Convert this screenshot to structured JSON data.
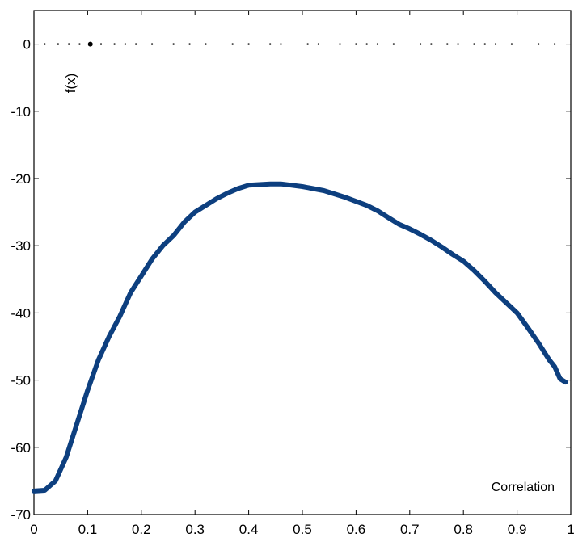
{
  "chart_data": {
    "type": "line",
    "title": "",
    "xlabel": "Correlation",
    "ylabel": "f(x)",
    "xlim": [
      0,
      1
    ],
    "ylim": [
      -70,
      5
    ],
    "x_ticks": [
      0,
      0.1,
      0.2,
      0.3,
      0.4,
      0.5,
      0.6,
      0.7,
      0.8,
      0.9,
      1
    ],
    "x_tick_labels": [
      "0",
      "0.1",
      "0.2",
      "0.3",
      "0.4",
      "0.5",
      "0.6",
      "0.7",
      "0.8",
      "0.9",
      "1"
    ],
    "y_ticks": [
      0,
      -10,
      -20,
      -30,
      -40,
      -50,
      -60,
      -70
    ],
    "y_tick_labels": [
      "0",
      "-10",
      "-20",
      "-30",
      "-40",
      "-50",
      "-60",
      "-70"
    ],
    "grid": false,
    "series": [
      {
        "color": "#0d3f7f",
        "x": [
          0,
          0.02,
          0.04,
          0.06,
          0.08,
          0.1,
          0.12,
          0.14,
          0.16,
          0.18,
          0.2,
          0.22,
          0.24,
          0.26,
          0.28,
          0.3,
          0.32,
          0.34,
          0.36,
          0.38,
          0.4,
          0.42,
          0.44,
          0.46,
          0.48,
          0.5,
          0.52,
          0.54,
          0.56,
          0.58,
          0.6,
          0.62,
          0.64,
          0.66,
          0.68,
          0.7,
          0.72,
          0.74,
          0.76,
          0.78,
          0.8,
          0.82,
          0.84,
          0.86,
          0.88,
          0.9,
          0.92,
          0.94,
          0.96,
          0.97,
          0.98,
          0.99
        ],
        "values": [
          -66.5,
          -66.4,
          -65.0,
          -61.5,
          -56.5,
          -51.5,
          -47.0,
          -43.5,
          -40.5,
          -37.0,
          -34.5,
          -32.0,
          -30.0,
          -28.5,
          -26.5,
          -25.0,
          -24.0,
          -23.0,
          -22.2,
          -21.5,
          -21.0,
          -20.9,
          -20.8,
          -20.8,
          -21.0,
          -21.2,
          -21.5,
          -21.8,
          -22.3,
          -22.8,
          -23.4,
          -24.0,
          -24.8,
          -25.8,
          -26.8,
          -27.5,
          -28.3,
          -29.2,
          -30.2,
          -31.3,
          -32.3,
          -33.7,
          -35.3,
          -37.0,
          -38.5,
          -40.0,
          -42.2,
          -44.5,
          -47.0,
          -48.0,
          -49.8,
          -50.3
        ]
      }
    ],
    "markers": {
      "y": 0,
      "x": [
        0.02,
        0.045,
        0.065,
        0.085,
        0.105,
        0.125,
        0.15,
        0.17,
        0.19,
        0.22,
        0.26,
        0.29,
        0.32,
        0.37,
        0.4,
        0.44,
        0.46,
        0.51,
        0.53,
        0.57,
        0.6,
        0.62,
        0.64,
        0.67,
        0.72,
        0.74,
        0.77,
        0.79,
        0.82,
        0.84,
        0.86,
        0.89,
        0.94,
        0.97
      ],
      "highlight_x": 0.105
    }
  }
}
